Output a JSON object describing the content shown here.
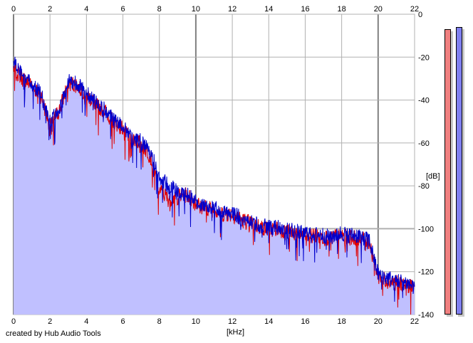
{
  "chart_data": {
    "type": "area",
    "xlabel": "[kHz]",
    "ylabel": "[dB]",
    "xlim": [
      0,
      22
    ],
    "ylim": [
      -140,
      0
    ],
    "x_ticks": [
      0,
      2,
      4,
      6,
      8,
      10,
      12,
      14,
      16,
      18,
      20,
      22
    ],
    "y_ticks": [
      0,
      -20,
      -40,
      -60,
      -80,
      -100,
      -120,
      -140
    ],
    "grid": true,
    "series": [
      {
        "color": "#e00000",
        "x": [
          0,
          0.5,
          1,
          1.5,
          2,
          2.5,
          3,
          3.5,
          4,
          4.5,
          5,
          5.5,
          6,
          6.5,
          7,
          7.5,
          8,
          8.5,
          9,
          9.5,
          10,
          10.5,
          11,
          11.5,
          12,
          12.5,
          13,
          13.5,
          14,
          14.5,
          15,
          15.5,
          16,
          16.5,
          17,
          17.5,
          18,
          18.5,
          19,
          19.5,
          20,
          20.5,
          21,
          21.5,
          22
        ],
        "values": [
          -25,
          -30,
          -33,
          -38,
          -52,
          -45,
          -32,
          -33,
          -37,
          -42,
          -45,
          -50,
          -53,
          -58,
          -60,
          -66,
          -82,
          -86,
          -85,
          -84,
          -88,
          -90,
          -91,
          -93,
          -93,
          -96,
          -97,
          -99,
          -100,
          -100,
          -101,
          -102,
          -103,
          -103,
          -104,
          -104,
          -103,
          -104,
          -104,
          -106,
          -122,
          -124,
          -125,
          -126,
          -127
        ]
      },
      {
        "color": "#0000cc",
        "x": [
          0,
          0.5,
          1,
          1.5,
          2,
          2.5,
          3,
          3.5,
          4,
          4.5,
          5,
          5.5,
          6,
          6.5,
          7,
          7.5,
          8,
          8.5,
          9,
          9.5,
          10,
          10.5,
          11,
          11.5,
          12,
          12.5,
          13,
          13.5,
          14,
          14.5,
          15,
          15.5,
          16,
          16.5,
          17,
          17.5,
          18,
          18.5,
          19,
          19.5,
          20,
          20.5,
          21,
          21.5,
          22
        ],
        "values": [
          -22,
          -29,
          -32,
          -37,
          -50,
          -44,
          -31,
          -32,
          -36,
          -41,
          -44,
          -49,
          -52,
          -57,
          -59,
          -64,
          -75,
          -80,
          -82,
          -84,
          -87,
          -89,
          -90,
          -92,
          -92,
          -95,
          -96,
          -98,
          -99,
          -99,
          -100,
          -101,
          -102,
          -102,
          -103,
          -103,
          -102,
          -103,
          -103,
          -105,
          -121,
          -123,
          -124,
          -125,
          -127
        ]
      }
    ]
  },
  "credit": "created by Hub Audio Tools",
  "meters": [
    {
      "color": "#f08080",
      "level_db": -7
    },
    {
      "color": "#8080f0",
      "level_db": -6
    }
  ],
  "colors": {
    "fill": "#c0c0ff",
    "grid": "#b0b0b0",
    "major_grid": "#808080"
  }
}
